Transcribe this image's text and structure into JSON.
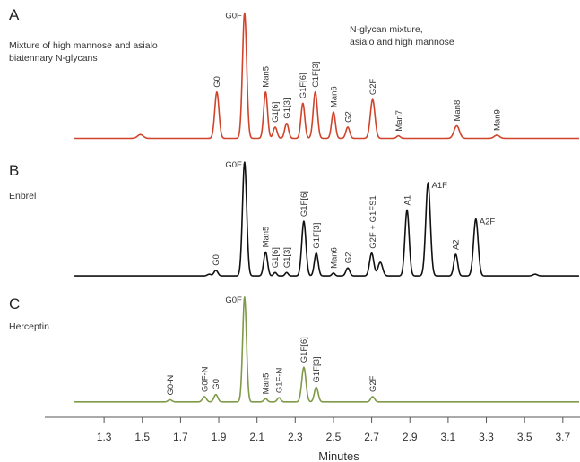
{
  "chart_data": [
    {
      "type": "line",
      "panel": "A",
      "description_lines": [
        "Mixture of high mannose and asialo",
        "biatennary N-glycans"
      ],
      "note_lines": [
        "N-glycan mixture,",
        "asialo and high mannose"
      ],
      "color": "#d0442c",
      "baseline": 0.025,
      "peaks": [
        {
          "x": 1.49,
          "h": 0.03,
          "w": 0.015
        },
        {
          "x": 1.89,
          "h": 0.37,
          "w": 0.011
        },
        {
          "x": 2.035,
          "h": 1.0,
          "w": 0.011
        },
        {
          "x": 2.145,
          "h": 0.37,
          "w": 0.01
        },
        {
          "x": 2.195,
          "h": 0.09,
          "w": 0.01
        },
        {
          "x": 2.255,
          "h": 0.12,
          "w": 0.01
        },
        {
          "x": 2.34,
          "h": 0.28,
          "w": 0.01
        },
        {
          "x": 2.405,
          "h": 0.37,
          "w": 0.011
        },
        {
          "x": 2.5,
          "h": 0.21,
          "w": 0.01
        },
        {
          "x": 2.575,
          "h": 0.09,
          "w": 0.01
        },
        {
          "x": 2.705,
          "h": 0.31,
          "w": 0.012
        },
        {
          "x": 2.84,
          "h": 0.02,
          "w": 0.01
        },
        {
          "x": 3.145,
          "h": 0.1,
          "w": 0.014
        },
        {
          "x": 3.355,
          "h": 0.025,
          "w": 0.014
        }
      ],
      "labels": [
        {
          "text": "G0",
          "x": 1.89,
          "h": 0.37,
          "rotated": true
        },
        {
          "text": "G0F",
          "x": 2.035,
          "h": 1.0,
          "rotated": false
        },
        {
          "text": "Man5",
          "x": 2.145,
          "h": 0.37,
          "rotated": true
        },
        {
          "text": "G1[6]",
          "x": 2.195,
          "h": 0.09,
          "rotated": true
        },
        {
          "text": "G1[3]",
          "x": 2.255,
          "h": 0.12,
          "rotated": true
        },
        {
          "text": "G1F[6]",
          "x": 2.34,
          "h": 0.28,
          "rotated": true
        },
        {
          "text": "G1F[3]",
          "x": 2.405,
          "h": 0.37,
          "rotated": true
        },
        {
          "text": "Man6",
          "x": 2.5,
          "h": 0.21,
          "rotated": true
        },
        {
          "text": "G2",
          "x": 2.575,
          "h": 0.09,
          "rotated": true
        },
        {
          "text": "G2F",
          "x": 2.705,
          "h": 0.31,
          "rotated": true
        },
        {
          "text": "Man7",
          "x": 2.84,
          "h": 0.02,
          "rotated": true
        },
        {
          "text": "Man8",
          "x": 3.145,
          "h": 0.1,
          "rotated": true
        },
        {
          "text": "Man9",
          "x": 3.355,
          "h": 0.025,
          "rotated": true
        }
      ]
    },
    {
      "type": "line",
      "panel": "B",
      "description_lines": [
        "Enbrel"
      ],
      "note_lines": [],
      "color": "#111111",
      "baseline": 0.015,
      "peaks": [
        {
          "x": 1.85,
          "h": 0.015,
          "w": 0.01
        },
        {
          "x": 1.885,
          "h": 0.05,
          "w": 0.01
        },
        {
          "x": 2.035,
          "h": 1.0,
          "w": 0.011
        },
        {
          "x": 2.145,
          "h": 0.21,
          "w": 0.01
        },
        {
          "x": 2.195,
          "h": 0.03,
          "w": 0.008
        },
        {
          "x": 2.255,
          "h": 0.03,
          "w": 0.008
        },
        {
          "x": 2.345,
          "h": 0.48,
          "w": 0.011
        },
        {
          "x": 2.41,
          "h": 0.2,
          "w": 0.01
        },
        {
          "x": 2.5,
          "h": 0.025,
          "w": 0.008
        },
        {
          "x": 2.575,
          "h": 0.07,
          "w": 0.01
        },
        {
          "x": 2.7,
          "h": 0.2,
          "w": 0.011
        },
        {
          "x": 2.745,
          "h": 0.12,
          "w": 0.012
        },
        {
          "x": 2.885,
          "h": 0.58,
          "w": 0.011
        },
        {
          "x": 2.995,
          "h": 0.82,
          "w": 0.012
        },
        {
          "x": 3.14,
          "h": 0.19,
          "w": 0.01
        },
        {
          "x": 3.245,
          "h": 0.5,
          "w": 0.012
        },
        {
          "x": 3.555,
          "h": 0.015,
          "w": 0.012
        }
      ],
      "labels": [
        {
          "text": "G0",
          "x": 1.885,
          "h": 0.05,
          "rotated": true
        },
        {
          "text": "G0F",
          "x": 2.035,
          "h": 1.0,
          "rotated": false
        },
        {
          "text": "Man5",
          "x": 2.145,
          "h": 0.21,
          "rotated": true
        },
        {
          "text": "G1[6]",
          "x": 2.195,
          "h": 0.03,
          "rotated": true
        },
        {
          "text": "G1[3]",
          "x": 2.255,
          "h": 0.03,
          "rotated": true
        },
        {
          "text": "G1F[6]",
          "x": 2.345,
          "h": 0.48,
          "rotated": true
        },
        {
          "text": "G1F[3]",
          "x": 2.41,
          "h": 0.2,
          "rotated": true
        },
        {
          "text": "Man6",
          "x": 2.5,
          "h": 0.025,
          "rotated": true
        },
        {
          "text": "G2",
          "x": 2.575,
          "h": 0.07,
          "rotated": true
        },
        {
          "text": "G2F + G1FS1",
          "x": 2.705,
          "h": 0.2,
          "rotated": true
        },
        {
          "text": "A1",
          "x": 2.885,
          "h": 0.58,
          "rotated": true
        },
        {
          "text": "A1F",
          "x": 2.995,
          "h": 0.82,
          "rotated": false
        },
        {
          "text": "A2",
          "x": 3.14,
          "h": 0.19,
          "rotated": true
        },
        {
          "text": "A2F",
          "x": 3.245,
          "h": 0.5,
          "rotated": false
        }
      ]
    },
    {
      "type": "line",
      "panel": "C",
      "description_lines": [
        "Herceptin"
      ],
      "note_lines": [],
      "color": "#7f9a48",
      "baseline": 0.01,
      "peaks": [
        {
          "x": 1.645,
          "h": 0.02,
          "w": 0.01
        },
        {
          "x": 1.825,
          "h": 0.05,
          "w": 0.01
        },
        {
          "x": 1.885,
          "h": 0.07,
          "w": 0.01
        },
        {
          "x": 2.035,
          "h": 1.0,
          "w": 0.01
        },
        {
          "x": 2.145,
          "h": 0.03,
          "w": 0.009
        },
        {
          "x": 2.215,
          "h": 0.04,
          "w": 0.009
        },
        {
          "x": 2.345,
          "h": 0.33,
          "w": 0.011
        },
        {
          "x": 2.41,
          "h": 0.14,
          "w": 0.01
        },
        {
          "x": 2.705,
          "h": 0.05,
          "w": 0.01
        }
      ],
      "labels": [
        {
          "text": "G0-N",
          "x": 1.645,
          "h": 0.02,
          "rotated": true
        },
        {
          "text": "G0F-N",
          "x": 1.825,
          "h": 0.05,
          "rotated": true
        },
        {
          "text": "G0",
          "x": 1.885,
          "h": 0.07,
          "rotated": true
        },
        {
          "text": "G0F",
          "x": 2.035,
          "h": 1.0,
          "rotated": false
        },
        {
          "text": "Man5",
          "x": 2.145,
          "h": 0.03,
          "rotated": true
        },
        {
          "text": "G1F-N",
          "x": 2.215,
          "h": 0.04,
          "rotated": true
        },
        {
          "text": "G1F[6]",
          "x": 2.345,
          "h": 0.33,
          "rotated": true
        },
        {
          "text": "G1F[3]",
          "x": 2.41,
          "h": 0.14,
          "rotated": true
        },
        {
          "text": "G2F",
          "x": 2.705,
          "h": 0.05,
          "rotated": true
        }
      ]
    }
  ],
  "x_axis": {
    "label": "Minutes",
    "xlim": [
      1.14,
      3.79
    ],
    "ticks": [
      "1.3",
      "1.5",
      "1.7",
      "1.9",
      "2.1",
      "2.3",
      "2.5",
      "2.7",
      "2.9",
      "3.1",
      "3.3",
      "3.5",
      "3.7"
    ]
  }
}
